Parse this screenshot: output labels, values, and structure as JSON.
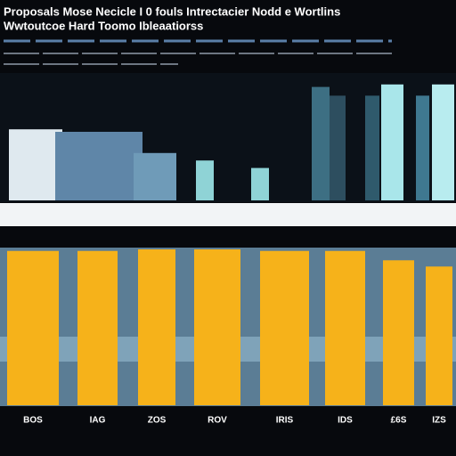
{
  "chart_data": [
    {
      "type": "bar",
      "title": "Proposals Mose Necicle I 0 fouls Intrectacier Nodd e Wortlins",
      "subtitle": "Wwtoutcoe Hard Toomo Ibleaatiorss",
      "values": [
        57,
        55,
        38,
        32,
        26,
        91,
        84,
        84,
        93,
        84,
        93
      ],
      "colors": [
        "#dfe9ef",
        "#5f86a8",
        "#6f9bb8",
        "#8fd3d6",
        "#8fd3d6",
        "#3d6f83",
        "#2d4e5f",
        "#2f5a6c",
        "#a9e6ea",
        "#3f7890",
        "#b8ecef"
      ],
      "ylim": [
        0,
        100
      ]
    },
    {
      "type": "bar",
      "categories": [
        "BOS",
        "IAG",
        "ZOS",
        "ROV",
        "IRIS",
        "IDS",
        "£6S",
        "IZS"
      ],
      "values": [
        99,
        99,
        100,
        100,
        99,
        99,
        93,
        89
      ],
      "color": "#f6b21a",
      "ylim": [
        0,
        100
      ]
    }
  ]
}
